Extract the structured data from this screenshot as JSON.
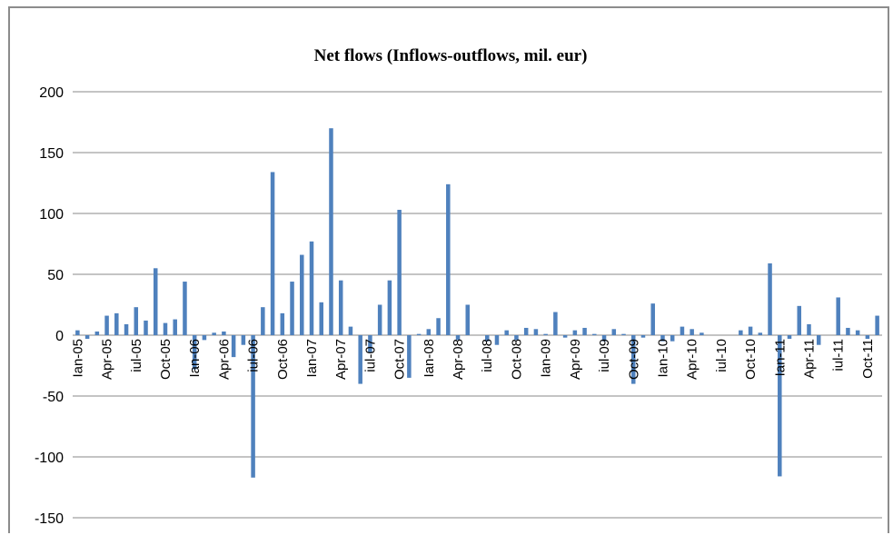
{
  "chart_data": {
    "type": "bar",
    "title": "Net flows (Inflows-outflows, mil. eur)",
    "xlabel": "",
    "ylabel": "",
    "ylim": [
      -150,
      200
    ],
    "yticks": [
      "200",
      "150",
      "100",
      "50",
      "0",
      "-50",
      "-100",
      "-150"
    ],
    "ytick_values": [
      200,
      150,
      100,
      50,
      0,
      -50,
      -100,
      -150
    ],
    "grid": true,
    "legend": "none",
    "bar_color": "#4f81bd",
    "tick_labels": [
      "Ian-05",
      "Apr-05",
      "iul-05",
      "Oct-05",
      "Ian-06",
      "Apr-06",
      "iul-06",
      "Oct-06",
      "Ian-07",
      "Apr-07",
      "iul-07",
      "Oct-07",
      "Ian-08",
      "Apr-08",
      "iul-08",
      "Oct-08",
      "Ian-09",
      "Apr-09",
      "iul-09",
      "Oct-09",
      "Ian-10",
      "Apr-10",
      "iul-10",
      "Oct-10",
      "Ian-11",
      "Apr-11",
      "iul-11",
      "Oct-11"
    ],
    "tick_every": 3,
    "series": [
      {
        "values": [
          4,
          -3,
          3,
          16,
          18,
          9,
          23,
          12,
          55,
          10,
          13,
          44,
          -28,
          -4,
          2,
          3,
          -18,
          -8,
          -117,
          23,
          134,
          18,
          44,
          66,
          77,
          27,
          170,
          45,
          7,
          -40,
          -14,
          25,
          45,
          103,
          -35,
          1,
          5,
          14,
          124,
          -4,
          25,
          0,
          -5,
          -8,
          4,
          -4,
          6,
          5,
          1,
          19,
          -2,
          4,
          6,
          1,
          -5,
          5,
          1,
          -40,
          -2,
          26,
          -5,
          -5,
          7,
          5,
          2,
          0,
          0,
          0,
          4,
          7,
          2,
          59,
          -116,
          -3,
          24,
          9,
          -8,
          0,
          31,
          6,
          4,
          -3,
          16
        ]
      }
    ]
  }
}
